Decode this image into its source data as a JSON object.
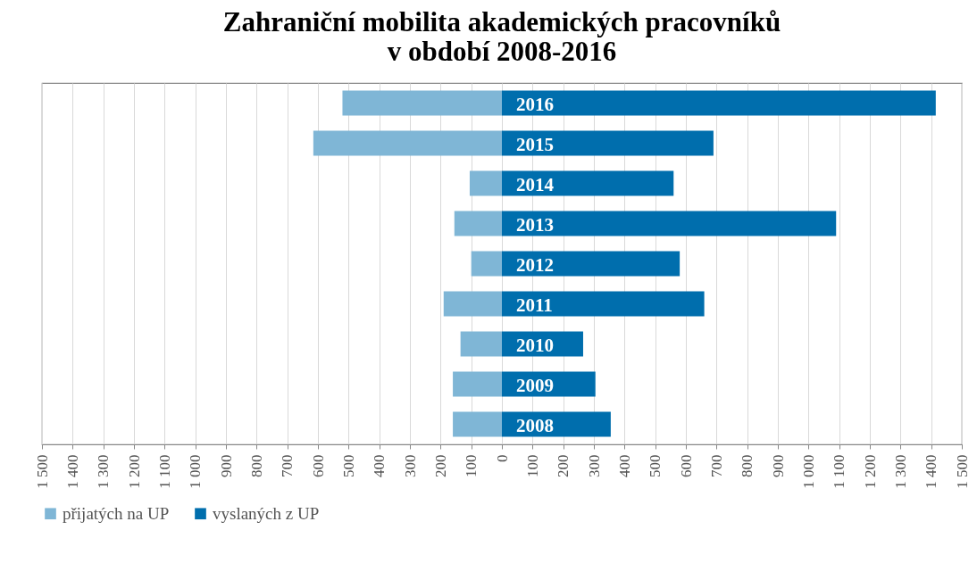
{
  "chart_data": {
    "type": "bar",
    "orientation": "horizontal",
    "stacked": true,
    "title": "Zahraniční mobilita akademických pracovníků\nv období 2008-2016",
    "categories": [
      "2016",
      "2015",
      "2014",
      "2013",
      "2012",
      "2011",
      "2010",
      "2009",
      "2008"
    ],
    "series": [
      {
        "name": "přijatých na UP",
        "color": "#7fb6d6",
        "values": [
          -520,
          -615,
          -105,
          -155,
          -100,
          -190,
          -135,
          -160,
          -160
        ]
      },
      {
        "name": "vyslaných z UP",
        "color": "#006ead",
        "values": [
          1415,
          690,
          560,
          1090,
          580,
          660,
          265,
          305,
          355
        ]
      }
    ],
    "xlim": [
      -1500,
      1500
    ],
    "xticks": [
      {
        "value": -1500,
        "label": "1 500"
      },
      {
        "value": -1400,
        "label": "1 400"
      },
      {
        "value": -1300,
        "label": "1 300"
      },
      {
        "value": -1200,
        "label": "1 200"
      },
      {
        "value": -1100,
        "label": "1 100"
      },
      {
        "value": -1000,
        "label": "1 000"
      },
      {
        "value": -900,
        "label": "900"
      },
      {
        "value": -800,
        "label": "800"
      },
      {
        "value": -700,
        "label": "700"
      },
      {
        "value": -600,
        "label": "600"
      },
      {
        "value": -500,
        "label": "500"
      },
      {
        "value": -400,
        "label": "400"
      },
      {
        "value": -300,
        "label": "300"
      },
      {
        "value": -200,
        "label": "200"
      },
      {
        "value": -100,
        "label": "100"
      },
      0,
      100,
      200,
      300,
      400,
      500,
      600,
      700,
      800,
      900,
      {
        "value": 1000,
        "label": "1 000"
      },
      {
        "value": 1100,
        "label": "1 100"
      },
      {
        "value": 1200,
        "label": "1 200"
      },
      {
        "value": 1300,
        "label": "1 300"
      },
      {
        "value": 1400,
        "label": "1 400"
      },
      {
        "value": 1500,
        "label": "1 500"
      }
    ],
    "grid": "x",
    "legend": "bottom"
  }
}
